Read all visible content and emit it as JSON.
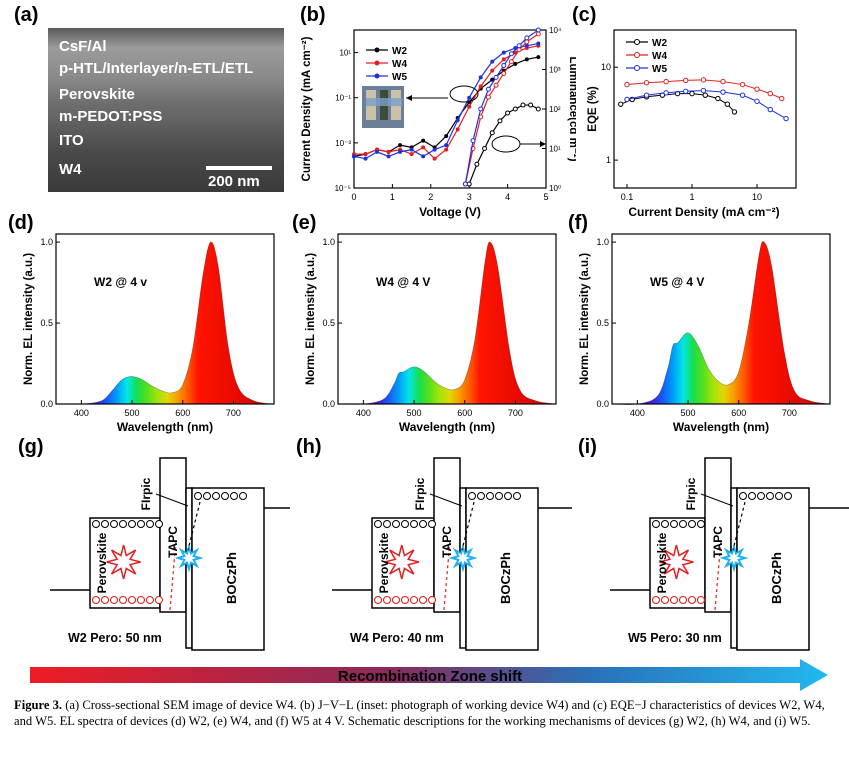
{
  "panels": {
    "a": "(a)",
    "b": "(b)",
    "c": "(c)",
    "d": "(d)",
    "e": "(e)",
    "f": "(f)",
    "g": "(g)",
    "h": "(h)",
    "i": "(i)"
  },
  "sem": {
    "layers": [
      "CsF/Al",
      "p-HTL/Interlayer/n-ETL/ETL",
      "Perovskite",
      "m-PEDOT:PSS",
      "ITO"
    ],
    "device": "W4",
    "scale_bar": "200 nm"
  },
  "colors": {
    "W2": "#000000",
    "W4": "#e02020",
    "W5": "#2030e0"
  },
  "chart_data": [
    {
      "id": "b",
      "type": "line",
      "xlabel": "Voltage (V)",
      "ylabel": "Current Density (mA cm⁻²)",
      "y2label": "Luminance(cd m⁻²)",
      "xlim": [
        0,
        5
      ],
      "ylim_log10": [
        -5,
        2
      ],
      "y2lim_log10": [
        0,
        4
      ],
      "x_ticks": [
        "0",
        "1",
        "2",
        "3",
        "4",
        "5"
      ],
      "y_ticks": [
        "10⁻⁵",
        "10⁻³",
        "10⁻¹",
        "10¹"
      ],
      "y2_ticks": [
        "10⁰",
        "10¹",
        "10²",
        "10³",
        "10⁴"
      ],
      "legend": [
        "W2",
        "W4",
        "W5"
      ],
      "legend_position": "top-left",
      "inset": "photograph of working device W4",
      "series_J": [
        {
          "name": "W2",
          "x": [
            0.0,
            0.3,
            0.6,
            0.9,
            1.2,
            1.5,
            1.8,
            2.1,
            2.4,
            2.7,
            3.0,
            3.3,
            3.6,
            3.9,
            4.2,
            4.5,
            4.8
          ],
          "log10y": [
            -3.6,
            -3.5,
            -3.3,
            -3.4,
            -3.1,
            -3.2,
            -2.9,
            -3.2,
            -2.7,
            -1.9,
            -1.2,
            -0.6,
            -0.2,
            0.2,
            0.5,
            0.7,
            0.8
          ]
        },
        {
          "name": "W4",
          "x": [
            0.0,
            0.3,
            0.6,
            0.9,
            1.2,
            1.5,
            1.8,
            2.1,
            2.4,
            2.7,
            3.0,
            3.3,
            3.6,
            3.9,
            4.2,
            4.5,
            4.8
          ],
          "log10y": [
            -3.5,
            -3.5,
            -3.3,
            -3.4,
            -3.3,
            -3.5,
            -3.2,
            -3.7,
            -3.3,
            -2.4,
            -1.4,
            -0.5,
            0.2,
            0.7,
            1.0,
            1.2,
            1.3
          ]
        },
        {
          "name": "W5",
          "x": [
            0.0,
            0.3,
            0.6,
            0.9,
            1.2,
            1.5,
            1.8,
            2.1,
            2.4,
            2.7,
            3.0,
            3.3,
            3.6,
            3.9,
            4.2,
            4.5,
            4.8
          ],
          "log10y": [
            -3.6,
            -3.7,
            -3.4,
            -3.6,
            -3.4,
            -3.3,
            -3.6,
            -3.3,
            -3.1,
            -2.0,
            -1.0,
            -0.1,
            0.6,
            1.0,
            1.2,
            1.3,
            1.4
          ]
        }
      ],
      "series_L": [
        {
          "name": "W2",
          "x": [
            3.0,
            3.2,
            3.4,
            3.6,
            3.8,
            4.0,
            4.2,
            4.4,
            4.6,
            4.8
          ],
          "log10y": [
            0.1,
            0.6,
            1.0,
            1.4,
            1.7,
            1.9,
            2.0,
            2.1,
            2.1,
            2.0
          ]
        },
        {
          "name": "W4",
          "x": [
            2.9,
            3.1,
            3.3,
            3.5,
            3.7,
            3.9,
            4.1,
            4.3,
            4.5,
            4.8
          ],
          "log10y": [
            0.1,
            1.0,
            1.8,
            2.3,
            2.6,
            2.9,
            3.2,
            3.5,
            3.7,
            3.9
          ]
        },
        {
          "name": "W5",
          "x": [
            2.9,
            3.1,
            3.3,
            3.5,
            3.7,
            3.9,
            4.1,
            4.3,
            4.5,
            4.8
          ],
          "log10y": [
            0.1,
            1.2,
            2.0,
            2.5,
            2.8,
            3.1,
            3.4,
            3.6,
            3.8,
            4.0
          ]
        }
      ]
    },
    {
      "id": "c",
      "type": "scatter",
      "xlabel": "Current Density (mA cm⁻²)",
      "ylabel": "EQE (%)",
      "xlim_log10": [
        -1.2,
        1.6
      ],
      "ylim_log10": [
        -0.3,
        1.4
      ],
      "x_ticks": [
        "0.1",
        "1",
        "10"
      ],
      "y_ticks": [
        "1",
        "10"
      ],
      "legend": [
        "W2",
        "W4",
        "W5"
      ],
      "legend_position": "top-left",
      "series": [
        {
          "name": "W2",
          "x": [
            0.08,
            0.12,
            0.2,
            0.35,
            0.6,
            1.0,
            1.6,
            2.5,
            3.5,
            4.5
          ],
          "y": [
            4.0,
            4.5,
            4.8,
            5.0,
            5.2,
            5.2,
            5.0,
            4.6,
            4.0,
            3.3
          ]
        },
        {
          "name": "W4",
          "x": [
            0.1,
            0.2,
            0.4,
            0.8,
            1.5,
            3,
            6,
            10,
            16,
            24
          ],
          "y": [
            6.5,
            6.8,
            7.0,
            7.2,
            7.3,
            7.0,
            6.5,
            5.8,
            5.2,
            4.6
          ]
        },
        {
          "name": "W5",
          "x": [
            0.1,
            0.2,
            0.4,
            0.8,
            1.5,
            3,
            6,
            10,
            16,
            28
          ],
          "y": [
            4.5,
            5.0,
            5.3,
            5.5,
            5.6,
            5.4,
            5.0,
            4.3,
            3.5,
            2.8
          ]
        }
      ]
    },
    {
      "id": "d",
      "type": "area",
      "xlabel": "Wavelength (nm)",
      "ylabel": "Norm. EL intensity (a.u.)",
      "annotation": "W2  @ 4 v",
      "xlim": [
        350,
        780
      ],
      "ylim": [
        0,
        1.05
      ],
      "x_ticks": [
        "400",
        "500",
        "600",
        "700"
      ],
      "y_ticks": [
        "0.0",
        "0.5",
        "1.0"
      ],
      "x": [
        350,
        400,
        440,
        460,
        480,
        500,
        520,
        540,
        560,
        580,
        600,
        620,
        640,
        655,
        670,
        690,
        710,
        740,
        780
      ],
      "y": [
        0.0,
        0.0,
        0.02,
        0.08,
        0.15,
        0.17,
        0.15,
        0.11,
        0.08,
        0.07,
        0.12,
        0.35,
        0.8,
        1.0,
        0.85,
        0.35,
        0.1,
        0.02,
        0.0
      ]
    },
    {
      "id": "e",
      "type": "area",
      "xlabel": "Wavelength (nm)",
      "ylabel": "Norm. EL intensity (a.u.)",
      "annotation": "W4  @ 4 V",
      "xlim": [
        350,
        780
      ],
      "ylim": [
        0,
        1.05
      ],
      "x_ticks": [
        "400",
        "500",
        "600",
        "700"
      ],
      "y_ticks": [
        "0.0",
        "0.5",
        "1.0"
      ],
      "x": [
        350,
        400,
        440,
        460,
        470,
        480,
        500,
        520,
        540,
        560,
        580,
        600,
        620,
        640,
        650,
        665,
        690,
        710,
        740,
        780
      ],
      "y": [
        0.0,
        0.0,
        0.03,
        0.12,
        0.19,
        0.2,
        0.23,
        0.2,
        0.14,
        0.1,
        0.09,
        0.15,
        0.4,
        0.88,
        1.0,
        0.85,
        0.3,
        0.08,
        0.02,
        0.0
      ]
    },
    {
      "id": "f",
      "type": "area",
      "xlabel": "Wavelength (nm)",
      "ylabel": "Norm. EL intensity (a.u.)",
      "annotation": "W5  @ 4 V",
      "xlim": [
        350,
        780
      ],
      "ylim": [
        0,
        1.05
      ],
      "x_ticks": [
        "400",
        "500",
        "600",
        "700"
      ],
      "y_ticks": [
        "0.0",
        "0.5",
        "1.0"
      ],
      "x": [
        350,
        400,
        440,
        460,
        470,
        480,
        500,
        520,
        540,
        560,
        580,
        600,
        620,
        640,
        650,
        665,
        690,
        710,
        740,
        780
      ],
      "y": [
        0.0,
        0.0,
        0.05,
        0.22,
        0.36,
        0.38,
        0.44,
        0.36,
        0.22,
        0.14,
        0.12,
        0.2,
        0.5,
        0.92,
        1.0,
        0.85,
        0.32,
        0.08,
        0.02,
        0.0
      ]
    }
  ],
  "schematics": [
    {
      "id": "g",
      "device_label": "W2 Pero: 50 nm",
      "perovskite": "Perovskite",
      "tapc": "TAPC",
      "dopant": "FIrpic",
      "host": "BOCzPh"
    },
    {
      "id": "h",
      "device_label": "W4 Pero: 40 nm",
      "perovskite": "Perovskite",
      "tapc": "TAPC",
      "dopant": "FIrpic",
      "host": "BOCzPh"
    },
    {
      "id": "i",
      "device_label": "W5 Pero: 30 nm",
      "perovskite": "Perovskite",
      "tapc": "TAPC",
      "dopant": "FIrpic",
      "host": "BOCzPh"
    }
  ],
  "arrow_label": "Recombination Zone shift",
  "caption": {
    "lead": "Figure 3.",
    "text": " (a) Cross-sectional SEM image of device W4. (b) J−V−L (inset: photograph of working device W4) and (c) EQE−J characteristics of devices W2, W4, and W5. EL spectra of devices (d) W2, (e) W4, and (f) W5 at 4 V. Schematic descriptions for the working mechanisms of devices (g) W2, (h) W4, and (i) W5."
  }
}
